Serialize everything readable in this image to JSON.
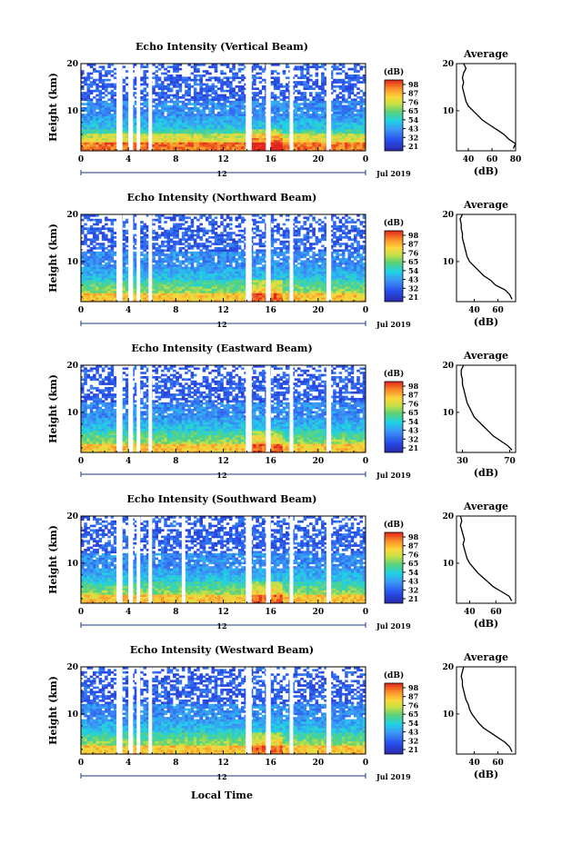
{
  "figure": {
    "x_axis_label": "Local Time",
    "date_label": "Jul 2019",
    "colorbar_unit": "(dB)",
    "colorbar_ticks": [
      "98",
      "87",
      "76",
      "65",
      "54",
      "43",
      "32",
      "21"
    ],
    "y_axis_label": "Height (km)",
    "avg_title": "Average",
    "avg_xlabel": "(dB)"
  },
  "chart_data": [
    {
      "type": "heatmap",
      "title": "Echo Intensity (Vertical Beam)",
      "ylabel": "Height (km)",
      "xlabel": "Local Time",
      "x_ticks": [
        "0",
        "4",
        "8",
        "12",
        "16",
        "20",
        "0"
      ],
      "x_range_hours": [
        0,
        24
      ],
      "y_ticks": [
        "20",
        "10"
      ],
      "y_range_km": [
        1.5,
        20
      ],
      "date_tick": "12",
      "date_label": "Jul 2019",
      "colorbar": {
        "unit": "(dB)",
        "ticks": [
          "98",
          "87",
          "76",
          "65",
          "54",
          "43",
          "32",
          "21"
        ],
        "range": [
          21,
          98
        ]
      },
      "data_gaps_hours": [
        [
          3.0,
          3.5
        ],
        [
          4.0,
          4.4
        ],
        [
          4.7,
          5.0
        ],
        [
          5.7,
          6.0
        ],
        [
          13.9,
          14.4
        ],
        [
          15.6,
          16.0
        ],
        [
          17.6,
          17.9
        ],
        [
          20.7,
          21.1
        ]
      ],
      "average_profile": {
        "title": "Average",
        "xlabel": "(dB)",
        "x_ticks": [
          "40",
          "60",
          "80"
        ],
        "x_range": [
          30,
          80
        ],
        "y_ticks": [
          "20",
          "10"
        ],
        "height_km": [
          2,
          3,
          4,
          5,
          6,
          7,
          8,
          9,
          10,
          11,
          12,
          13,
          14,
          15,
          16,
          17,
          18,
          19,
          20
        ],
        "values_db": [
          78,
          80,
          74,
          70,
          64,
          58,
          52,
          48,
          44,
          40,
          38,
          37,
          36,
          35,
          36,
          35,
          36,
          38,
          36
        ]
      }
    },
    {
      "type": "heatmap",
      "title": "Echo Intensity (Northward Beam)",
      "ylabel": "Height (km)",
      "xlabel": "Local Time",
      "x_ticks": [
        "0",
        "4",
        "8",
        "12",
        "16",
        "20",
        "0"
      ],
      "x_range_hours": [
        0,
        24
      ],
      "y_ticks": [
        "20",
        "10"
      ],
      "y_range_km": [
        1.5,
        20
      ],
      "date_tick": "12",
      "date_label": "Jul 2019",
      "colorbar": {
        "unit": "(dB)",
        "ticks": [
          "98",
          "87",
          "76",
          "65",
          "54",
          "43",
          "32",
          "21"
        ],
        "range": [
          21,
          98
        ]
      },
      "data_gaps_hours": [
        [
          3.0,
          3.5
        ],
        [
          4.0,
          4.4
        ],
        [
          4.7,
          5.0
        ],
        [
          5.7,
          6.0
        ],
        [
          13.9,
          14.4
        ],
        [
          15.6,
          16.0
        ],
        [
          17.6,
          17.9
        ],
        [
          20.7,
          21.1
        ]
      ],
      "average_profile": {
        "title": "Average",
        "xlabel": "(dB)",
        "x_ticks": [
          "40",
          "60"
        ],
        "x_range": [
          25,
          75
        ],
        "y_ticks": [
          "20",
          "10"
        ],
        "height_km": [
          2,
          3,
          4,
          5,
          6,
          7,
          8,
          9,
          10,
          11,
          12,
          13,
          14,
          15,
          16,
          17,
          18,
          19,
          20
        ],
        "values_db": [
          72,
          70,
          66,
          58,
          54,
          48,
          44,
          40,
          36,
          34,
          33,
          32,
          31,
          30,
          30,
          29,
          29,
          28,
          30
        ]
      }
    },
    {
      "type": "heatmap",
      "title": "Echo Intensity (Eastward Beam)",
      "ylabel": "Height (km)",
      "xlabel": "Local Time",
      "x_ticks": [
        "0",
        "4",
        "8",
        "12",
        "16",
        "20",
        "0"
      ],
      "x_range_hours": [
        0,
        24
      ],
      "y_ticks": [
        "20",
        "10"
      ],
      "y_range_km": [
        1.5,
        20
      ],
      "date_tick": "12",
      "date_label": "Jul 2019",
      "colorbar": {
        "unit": "(dB)",
        "ticks": [
          "98",
          "87",
          "76",
          "65",
          "54",
          "43",
          "32",
          "21"
        ],
        "range": [
          21,
          98
        ]
      },
      "data_gaps_hours": [
        [
          3.0,
          3.5
        ],
        [
          4.0,
          4.4
        ],
        [
          4.7,
          5.0
        ],
        [
          5.7,
          6.0
        ],
        [
          13.9,
          14.4
        ],
        [
          15.6,
          16.0
        ],
        [
          17.6,
          17.9
        ],
        [
          20.7,
          21.1
        ]
      ],
      "average_profile": {
        "title": "Average",
        "xlabel": "(dB)",
        "x_ticks": [
          "30",
          "70"
        ],
        "x_range": [
          25,
          75
        ],
        "y_ticks": [
          "20",
          "10"
        ],
        "height_km": [
          2,
          3,
          4,
          5,
          6,
          7,
          8,
          9,
          10,
          11,
          12,
          13,
          14,
          15,
          16,
          17,
          18,
          19,
          20
        ],
        "values_db": [
          72,
          68,
          62,
          56,
          52,
          48,
          44,
          40,
          38,
          36,
          34,
          33,
          32,
          31,
          30,
          30,
          29,
          29,
          31
        ]
      }
    },
    {
      "type": "heatmap",
      "title": "Echo Intensity (Southward Beam)",
      "ylabel": "Height (km)",
      "xlabel": "Local Time",
      "x_ticks": [
        "0",
        "4",
        "8",
        "12",
        "16",
        "20",
        "0"
      ],
      "x_range_hours": [
        0,
        24
      ],
      "y_ticks": [
        "20",
        "10"
      ],
      "y_range_km": [
        1.5,
        20
      ],
      "date_tick": "12",
      "date_label": "Jul 2019",
      "colorbar": {
        "unit": "(dB)",
        "ticks": [
          "98",
          "87",
          "76",
          "65",
          "54",
          "43",
          "32",
          "21"
        ],
        "range": [
          21,
          98
        ]
      },
      "data_gaps_hours": [
        [
          3.0,
          3.5
        ],
        [
          4.0,
          4.4
        ],
        [
          4.7,
          5.0
        ],
        [
          5.7,
          6.0
        ],
        [
          8.5,
          8.8
        ],
        [
          13.9,
          14.4
        ],
        [
          15.6,
          16.0
        ],
        [
          17.6,
          17.9
        ],
        [
          20.7,
          21.1
        ]
      ],
      "average_profile": {
        "title": "Average",
        "xlabel": "(dB)",
        "x_ticks": [
          "40",
          "60"
        ],
        "x_range": [
          30,
          75
        ],
        "y_ticks": [
          "20",
          "10"
        ],
        "height_km": [
          2,
          3,
          4,
          5,
          6,
          7,
          8,
          9,
          10,
          11,
          12,
          13,
          14,
          15,
          16,
          17,
          18,
          19,
          20
        ],
        "values_db": [
          72,
          70,
          64,
          58,
          54,
          50,
          46,
          43,
          40,
          38,
          37,
          36,
          35,
          36,
          35,
          34,
          33,
          34,
          33
        ]
      }
    },
    {
      "type": "heatmap",
      "title": "Echo Intensity (Westward Beam)",
      "ylabel": "Height (km)",
      "xlabel": "Local Time",
      "x_ticks": [
        "0",
        "4",
        "8",
        "12",
        "16",
        "20",
        "0"
      ],
      "x_range_hours": [
        0,
        24
      ],
      "y_ticks": [
        "20",
        "10"
      ],
      "y_range_km": [
        1.5,
        20
      ],
      "date_tick": "12",
      "date_label": "Jul 2019",
      "colorbar": {
        "unit": "(dB)",
        "ticks": [
          "98",
          "87",
          "76",
          "65",
          "54",
          "43",
          "32",
          "21"
        ],
        "range": [
          21,
          98
        ]
      },
      "data_gaps_hours": [
        [
          3.0,
          3.5
        ],
        [
          4.0,
          4.4
        ],
        [
          4.7,
          5.0
        ],
        [
          5.7,
          6.0
        ],
        [
          13.9,
          14.4
        ],
        [
          15.6,
          16.0
        ],
        [
          17.6,
          17.9
        ],
        [
          20.7,
          21.1
        ]
      ],
      "average_profile": {
        "title": "Average",
        "xlabel": "(dB)",
        "x_ticks": [
          "40",
          "60"
        ],
        "x_range": [
          25,
          75
        ],
        "y_ticks": [
          "20",
          "10"
        ],
        "height_km": [
          2,
          3,
          4,
          5,
          6,
          7,
          8,
          9,
          10,
          11,
          12,
          13,
          14,
          15,
          16,
          17,
          18,
          19,
          20
        ],
        "values_db": [
          72,
          70,
          66,
          60,
          54,
          48,
          44,
          41,
          38,
          36,
          35,
          33,
          32,
          31,
          30,
          30,
          29,
          30,
          31
        ]
      }
    }
  ]
}
